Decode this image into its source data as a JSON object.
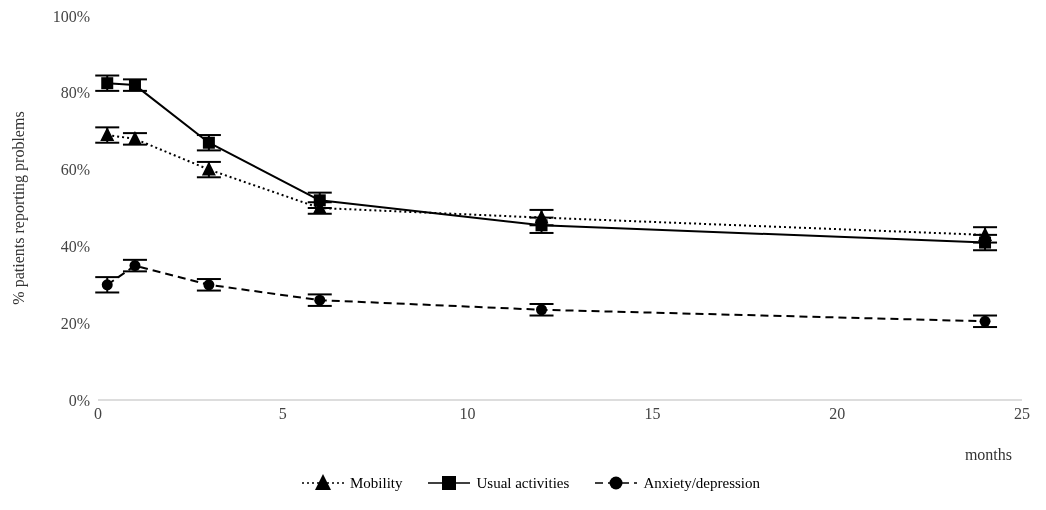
{
  "chart_data": {
    "type": "line",
    "xlabel": "months",
    "ylabel": "% patients reporting problems",
    "x": [
      0.25,
      1,
      3,
      6,
      12,
      24
    ],
    "series": [
      {
        "name": "Mobility",
        "color": "#000000",
        "marker": "triangle",
        "line_style": "dotted",
        "values": [
          69,
          68,
          60,
          50,
          47.5,
          43
        ],
        "errors": [
          2,
          1.5,
          2,
          1.5,
          2,
          2
        ]
      },
      {
        "name": "Usual activities",
        "color": "#000000",
        "marker": "square",
        "line_style": "solid",
        "values": [
          82.5,
          82,
          67,
          52,
          45.5,
          41
        ],
        "errors": [
          2,
          1.5,
          2,
          2,
          2,
          2
        ]
      },
      {
        "name": "Anxiety/depression",
        "color": "#000000",
        "marker": "circle",
        "line_style": "dashed",
        "values": [
          30,
          35,
          30,
          26,
          23.5,
          20.5
        ],
        "errors": [
          2,
          1.5,
          1.5,
          1.5,
          1.5,
          1.5
        ]
      }
    ],
    "xlim": [
      0,
      25
    ],
    "xticks": [
      0,
      5,
      10,
      15,
      20,
      25
    ],
    "ylim": [
      0,
      100
    ],
    "yticks": [
      {
        "value": 0,
        "label": "0%"
      },
      {
        "value": 20,
        "label": "20%"
      },
      {
        "value": 40,
        "label": "40%"
      },
      {
        "value": 60,
        "label": "60%"
      },
      {
        "value": 80,
        "label": "80%"
      },
      {
        "value": 100,
        "label": "100%"
      }
    ],
    "grid": false,
    "legend": "bottom"
  }
}
